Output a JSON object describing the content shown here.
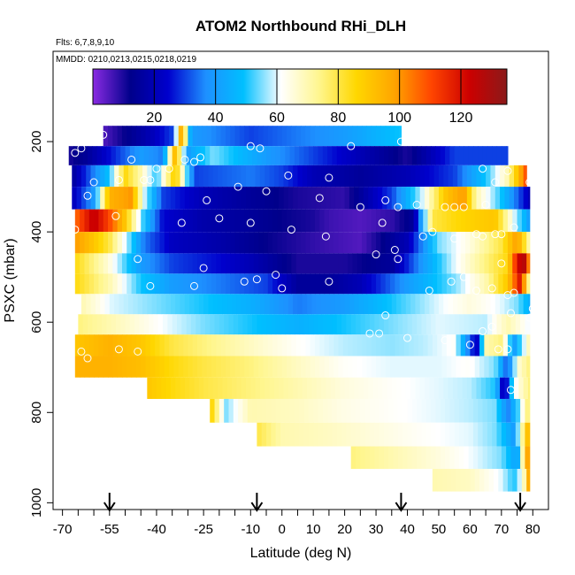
{
  "chart_data": {
    "type": "heatmap",
    "title": "ATOM2 Northbound RHi_DLH",
    "subtitle": "Flts: 6,7,8,9,10",
    "annotation": "MMDD: 0210,0213,0215,0218,0219",
    "xlabel": "Latitude (deg N)",
    "ylabel": "PSXC (mbar)",
    "xlim": [
      -70,
      85
    ],
    "ylim": [
      1000,
      0
    ],
    "x_ticks": [
      -70,
      -55,
      -40,
      -25,
      -10,
      0,
      10,
      20,
      30,
      40,
      50,
      60,
      70,
      80
    ],
    "y_ticks": [
      200,
      400,
      600,
      800,
      1000
    ],
    "colorbar": {
      "min": 0,
      "max": 135,
      "ticks": [
        20,
        40,
        60,
        80,
        100,
        120
      ],
      "colors": [
        "#8a2be2",
        "#00008b",
        "#0000cd",
        "#1e90ff",
        "#00bfff",
        "#ffffff",
        "#fff68f",
        "#ffd700",
        "#ffa500",
        "#ff4500",
        "#cc0000",
        "#8b1a1a"
      ]
    },
    "arrows_latitude": [
      -55,
      -8,
      38,
      76
    ],
    "rows": [
      {
        "p": 190,
        "x0": -57,
        "x1": 38,
        "stops": [
          [
            -57,
            5
          ],
          [
            -52,
            10
          ],
          [
            -42,
            20
          ],
          [
            -35,
            30
          ],
          [
            -32,
            100
          ],
          [
            -29,
            40
          ],
          [
            -10,
            30
          ],
          [
            5,
            35
          ],
          [
            20,
            40
          ],
          [
            38,
            50
          ]
        ]
      },
      {
        "p": 230,
        "x0": -68,
        "x1": 72,
        "stops": [
          [
            -68,
            10
          ],
          [
            -62,
            15
          ],
          [
            -52,
            30
          ],
          [
            -45,
            40
          ],
          [
            -38,
            35
          ],
          [
            -34,
            95
          ],
          [
            -30,
            40
          ],
          [
            -22,
            55
          ],
          [
            -5,
            40
          ],
          [
            10,
            30
          ],
          [
            25,
            20
          ],
          [
            40,
            10
          ],
          [
            55,
            30
          ],
          [
            72,
            30
          ]
        ]
      },
      {
        "p": 275,
        "x0": -67,
        "x1": 78,
        "stops": [
          [
            -67,
            15
          ],
          [
            -62,
            30
          ],
          [
            -55,
            50
          ],
          [
            -50,
            85
          ],
          [
            -45,
            70
          ],
          [
            -40,
            50
          ],
          [
            -34,
            90
          ],
          [
            -28,
            30
          ],
          [
            -10,
            35
          ],
          [
            0,
            30
          ],
          [
            10,
            20
          ],
          [
            25,
            15
          ],
          [
            40,
            20
          ],
          [
            55,
            30
          ],
          [
            65,
            50
          ],
          [
            72,
            70
          ],
          [
            78,
            110
          ]
        ]
      },
      {
        "p": 325,
        "x0": -67,
        "x1": 79,
        "stops": [
          [
            -67,
            20
          ],
          [
            -60,
            40
          ],
          [
            -55,
            95
          ],
          [
            -48,
            100
          ],
          [
            -44,
            60
          ],
          [
            -38,
            30
          ],
          [
            -25,
            20
          ],
          [
            -10,
            15
          ],
          [
            5,
            10
          ],
          [
            20,
            8
          ],
          [
            35,
            30
          ],
          [
            45,
            60
          ],
          [
            52,
            90
          ],
          [
            58,
            100
          ],
          [
            62,
            70
          ],
          [
            70,
            50
          ],
          [
            79,
            20
          ]
        ]
      },
      {
        "p": 375,
        "x0": -66,
        "x1": 79,
        "stops": [
          [
            -66,
            105
          ],
          [
            -60,
            125
          ],
          [
            -55,
            110
          ],
          [
            -50,
            90
          ],
          [
            -44,
            50
          ],
          [
            -38,
            25
          ],
          [
            -25,
            18
          ],
          [
            -10,
            15
          ],
          [
            0,
            12
          ],
          [
            10,
            10
          ],
          [
            15,
            7
          ],
          [
            25,
            5
          ],
          [
            35,
            8
          ],
          [
            42,
            15
          ],
          [
            48,
            80
          ],
          [
            55,
            85
          ],
          [
            62,
            88
          ],
          [
            68,
            90
          ],
          [
            74,
            60
          ],
          [
            79,
            40
          ]
        ]
      },
      {
        "p": 425,
        "x0": -66,
        "x1": 79,
        "stops": [
          [
            -66,
            100
          ],
          [
            -60,
            90
          ],
          [
            -55,
            80
          ],
          [
            -50,
            60
          ],
          [
            -44,
            35
          ],
          [
            -35,
            22
          ],
          [
            -20,
            18
          ],
          [
            -5,
            12
          ],
          [
            10,
            8
          ],
          [
            25,
            5
          ],
          [
            40,
            20
          ],
          [
            50,
            55
          ],
          [
            60,
            65
          ],
          [
            70,
            80
          ],
          [
            75,
            100
          ],
          [
            79,
            70
          ]
        ]
      },
      {
        "p": 470,
        "x0": -66,
        "x1": 79,
        "stops": [
          [
            -66,
            85
          ],
          [
            -55,
            65
          ],
          [
            -45,
            40
          ],
          [
            -35,
            30
          ],
          [
            -20,
            25
          ],
          [
            -10,
            20
          ],
          [
            5,
            10
          ],
          [
            20,
            10
          ],
          [
            35,
            15
          ],
          [
            45,
            40
          ],
          [
            55,
            60
          ],
          [
            65,
            75
          ],
          [
            72,
            85
          ],
          [
            75,
            120
          ],
          [
            77,
            130
          ],
          [
            79,
            100
          ]
        ]
      },
      {
        "p": 515,
        "x0": -66,
        "x1": 79,
        "stops": [
          [
            -66,
            85
          ],
          [
            -55,
            70
          ],
          [
            -45,
            50
          ],
          [
            -35,
            40
          ],
          [
            -20,
            35
          ],
          [
            -5,
            30
          ],
          [
            5,
            15
          ],
          [
            15,
            15
          ],
          [
            25,
            20
          ],
          [
            40,
            40
          ],
          [
            55,
            55
          ],
          [
            65,
            70
          ],
          [
            72,
            90
          ],
          [
            76,
            120
          ],
          [
            79,
            70
          ]
        ]
      },
      {
        "p": 560,
        "x0": -64,
        "x1": 79,
        "stops": [
          [
            -64,
            70
          ],
          [
            -55,
            60
          ],
          [
            -40,
            55
          ],
          [
            -25,
            50
          ],
          [
            -10,
            45
          ],
          [
            5,
            35
          ],
          [
            20,
            40
          ],
          [
            35,
            50
          ],
          [
            50,
            60
          ],
          [
            60,
            65
          ],
          [
            70,
            60
          ],
          [
            75,
            55
          ],
          [
            79,
            45
          ]
        ]
      },
      {
        "p": 605,
        "x0": -65,
        "x1": 79,
        "stops": [
          [
            -65,
            75
          ],
          [
            -55,
            70
          ],
          [
            -40,
            62
          ],
          [
            -25,
            55
          ],
          [
            -10,
            50
          ],
          [
            5,
            45
          ],
          [
            20,
            50
          ],
          [
            35,
            55
          ],
          [
            50,
            60
          ],
          [
            65,
            58
          ],
          [
            72,
            70
          ],
          [
            79,
            60
          ]
        ]
      },
      {
        "p": 650,
        "x0": -66,
        "x1": 79,
        "stops": [
          [
            -66,
            90
          ],
          [
            -55,
            95
          ],
          [
            -45,
            90
          ],
          [
            -35,
            80
          ],
          [
            -25,
            75
          ],
          [
            -10,
            68
          ],
          [
            5,
            62
          ],
          [
            20,
            58
          ],
          [
            35,
            56
          ],
          [
            45,
            58
          ],
          [
            55,
            62
          ],
          [
            62,
            20
          ],
          [
            65,
            70
          ],
          [
            70,
            75
          ],
          [
            74,
            40
          ],
          [
            79,
            70
          ]
        ]
      },
      {
        "p": 700,
        "x0": -66,
        "x1": 79,
        "stops": [
          [
            -66,
            95
          ],
          [
            -55,
            95
          ],
          [
            -45,
            92
          ],
          [
            -35,
            85
          ],
          [
            -25,
            80
          ],
          [
            -10,
            75
          ],
          [
            5,
            68
          ],
          [
            20,
            62
          ],
          [
            35,
            60
          ],
          [
            50,
            60
          ],
          [
            60,
            62
          ],
          [
            68,
            55
          ],
          [
            72,
            30
          ],
          [
            75,
            65
          ],
          [
            79,
            75
          ]
        ]
      },
      {
        "p": 745,
        "x0": -43,
        "x1": 79,
        "stops": [
          [
            -43,
            90
          ],
          [
            -35,
            85
          ],
          [
            -25,
            80
          ],
          [
            -10,
            75
          ],
          [
            5,
            70
          ],
          [
            20,
            65
          ],
          [
            35,
            62
          ],
          [
            50,
            60
          ],
          [
            60,
            58
          ],
          [
            68,
            50
          ],
          [
            71,
            15
          ],
          [
            74,
            60
          ],
          [
            79,
            75
          ]
        ]
      },
      {
        "p": 795,
        "x0": -23,
        "x1": 79,
        "stops": [
          [
            -23,
            90
          ],
          [
            -18,
            55
          ],
          [
            -10,
            70
          ],
          [
            5,
            68
          ],
          [
            20,
            64
          ],
          [
            35,
            62
          ],
          [
            50,
            60
          ],
          [
            60,
            58
          ],
          [
            68,
            55
          ],
          [
            72,
            35
          ],
          [
            75,
            50
          ],
          [
            79,
            80
          ]
        ]
      },
      {
        "p": 850,
        "x0": -8,
        "x1": 79,
        "stops": [
          [
            -8,
            80
          ],
          [
            0,
            70
          ],
          [
            15,
            68
          ],
          [
            30,
            65
          ],
          [
            45,
            62
          ],
          [
            60,
            60
          ],
          [
            68,
            55
          ],
          [
            74,
            40
          ],
          [
            79,
            100
          ]
        ]
      },
      {
        "p": 900,
        "x0": 22,
        "x1": 79,
        "stops": [
          [
            22,
            75
          ],
          [
            35,
            70
          ],
          [
            50,
            65
          ],
          [
            62,
            60
          ],
          [
            70,
            55
          ],
          [
            75,
            40
          ],
          [
            79,
            110
          ]
        ]
      },
      {
        "p": 950,
        "x0": 48,
        "x1": 79,
        "stops": [
          [
            48,
            70
          ],
          [
            60,
            68
          ],
          [
            70,
            60
          ],
          [
            74,
            50
          ],
          [
            77,
            65
          ],
          [
            79,
            100
          ]
        ]
      }
    ],
    "points": [
      [
        -57,
        185
      ],
      [
        -60,
        200
      ],
      [
        -64,
        215
      ],
      [
        -66,
        225
      ],
      [
        -48,
        240
      ],
      [
        -40,
        260
      ],
      [
        -36,
        260
      ],
      [
        -31,
        240
      ],
      [
        -28,
        245
      ],
      [
        -26,
        235
      ],
      [
        -10,
        210
      ],
      [
        -7,
        215
      ],
      [
        22,
        210
      ],
      [
        38,
        200
      ],
      [
        -60,
        290
      ],
      [
        -52,
        285
      ],
      [
        -44,
        285
      ],
      [
        -42,
        285
      ],
      [
        -14,
        300
      ],
      [
        2,
        275
      ],
      [
        15,
        280
      ],
      [
        -62,
        320
      ],
      [
        -24,
        330
      ],
      [
        -5,
        310
      ],
      [
        12,
        325
      ],
      [
        25,
        345
      ],
      [
        33,
        330
      ],
      [
        37,
        345
      ],
      [
        43,
        340
      ],
      [
        52,
        345
      ],
      [
        55,
        345
      ],
      [
        58,
        345
      ],
      [
        65,
        340
      ],
      [
        64,
        260
      ],
      [
        68,
        290
      ],
      [
        72,
        265
      ],
      [
        79,
        290
      ],
      [
        -53,
        365
      ],
      [
        -32,
        380
      ],
      [
        -20,
        370
      ],
      [
        -10,
        380
      ],
      [
        3,
        395
      ],
      [
        14,
        410
      ],
      [
        32,
        380
      ],
      [
        45,
        410
      ],
      [
        48,
        400
      ],
      [
        55,
        415
      ],
      [
        62,
        405
      ],
      [
        64,
        410
      ],
      [
        68,
        405
      ],
      [
        70,
        405
      ],
      [
        74,
        390
      ],
      [
        -66,
        395
      ],
      [
        -46,
        460
      ],
      [
        -25,
        480
      ],
      [
        -12,
        510
      ],
      [
        -8,
        505
      ],
      [
        -2,
        495
      ],
      [
        0,
        525
      ],
      [
        15,
        510
      ],
      [
        30,
        450
      ],
      [
        37,
        460
      ],
      [
        36,
        440
      ],
      [
        -42,
        520
      ],
      [
        -28,
        520
      ],
      [
        47,
        530
      ],
      [
        54,
        510
      ],
      [
        58,
        500
      ],
      [
        62,
        530
      ],
      [
        67,
        525
      ],
      [
        70,
        470
      ],
      [
        73,
        580
      ],
      [
        72,
        540
      ],
      [
        74,
        535
      ],
      [
        80,
        570
      ],
      [
        -68,
        670
      ],
      [
        -64,
        665
      ],
      [
        -62,
        680
      ],
      [
        -52,
        660
      ],
      [
        -46,
        665
      ],
      [
        28,
        625
      ],
      [
        31,
        625
      ],
      [
        33,
        585
      ],
      [
        40,
        635
      ],
      [
        52,
        640
      ],
      [
        60,
        650
      ],
      [
        64,
        620
      ],
      [
        67,
        610
      ],
      [
        69,
        660
      ],
      [
        72,
        660
      ],
      [
        73,
        750
      ],
      [
        79,
        590
      ]
    ]
  }
}
